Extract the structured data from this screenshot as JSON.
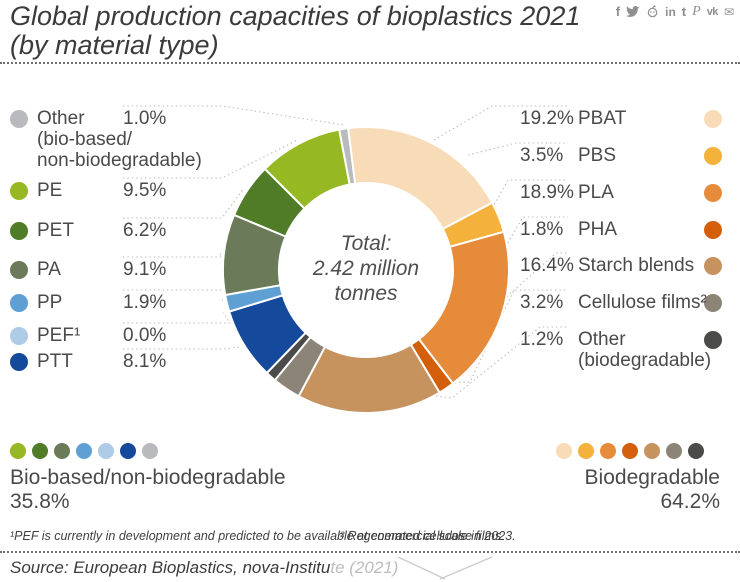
{
  "header": {
    "title_line1": "Global production capacities of bioplastics 2021",
    "title_line2": "(by material type)",
    "social_icons": [
      "facebook",
      "twitter",
      "reddit",
      "linkedin",
      "tumblr",
      "pinterest",
      "vk",
      "email"
    ]
  },
  "chart_data": {
    "type": "pie",
    "subtype": "donut",
    "title": "Global production capacities of bioplastics 2021 (by material type)",
    "center_lines": [
      "Total:",
      "2.42 million",
      "tonnes"
    ],
    "start_angle_deg": -7.2,
    "clockwise": true,
    "segments": [
      {
        "label": "PBAT",
        "value": 19.2,
        "group": "Biodegradable",
        "color": "#f8dcb8"
      },
      {
        "label": "PBS",
        "value": 3.5,
        "group": "Biodegradable",
        "color": "#f4b13c"
      },
      {
        "label": "PLA",
        "value": 18.9,
        "group": "Biodegradable",
        "color": "#e58b3a"
      },
      {
        "label": "PHA",
        "value": 1.8,
        "group": "Biodegradable",
        "color": "#d45f0a"
      },
      {
        "label": "Starch blends",
        "value": 16.4,
        "group": "Biodegradable",
        "color": "#c6935f"
      },
      {
        "label": "Cellulose films²",
        "value": 3.2,
        "group": "Biodegradable",
        "color": "#8d8478"
      },
      {
        "label": "Other (biodegradable)",
        "value": 1.2,
        "group": "Biodegradable",
        "color": "#4b4b49"
      },
      {
        "label": "PTT",
        "value": 8.1,
        "group": "Bio-based/non-biodegradable",
        "color": "#14499c"
      },
      {
        "label": "PEF¹",
        "value": 0.0,
        "group": "Bio-based/non-biodegradable",
        "color": "#aecbe8"
      },
      {
        "label": "PP",
        "value": 1.9,
        "group": "Bio-based/non-biodegradable",
        "color": "#5e9fd4"
      },
      {
        "label": "PA",
        "value": 9.1,
        "group": "Bio-based/non-biodegradable",
        "color": "#6b7a58"
      },
      {
        "label": "PET",
        "value": 6.2,
        "group": "Bio-based/non-biodegradable",
        "color": "#507c28"
      },
      {
        "label": "PE",
        "value": 9.5,
        "group": "Bio-based/non-biodegradable",
        "color": "#96b822"
      },
      {
        "label": "Other (bio-based/non-biodegradable)",
        "value": 1.0,
        "group": "Bio-based/non-biodegradable",
        "color": "#b9babe"
      }
    ],
    "groups": [
      {
        "label": "Bio-based/non-biodegradable",
        "share_pct": 35.8
      },
      {
        "label": "Biodegradable",
        "share_pct": 64.2
      }
    ]
  },
  "legend_left": {
    "items": [
      {
        "label": "Other",
        "sublabels": [
          "(bio-based/",
          "non-biodegradable)"
        ],
        "pct": "1.0%",
        "color": "#b9babe"
      },
      {
        "label": "PE",
        "pct": "9.5%",
        "color": "#96b822"
      },
      {
        "label": "PET",
        "pct": "6.2%",
        "color": "#507c28"
      },
      {
        "label": "PA",
        "pct": "9.1%",
        "color": "#6b7a58"
      },
      {
        "label": "PP",
        "pct": "1.9%",
        "color": "#5e9fd4"
      },
      {
        "label": "PEF¹",
        "pct": "0.0%",
        "color": "#aecbe8"
      },
      {
        "label": "PTT",
        "pct": "8.1%",
        "color": "#14499c"
      }
    ]
  },
  "legend_right": {
    "items": [
      {
        "pct": "19.2%",
        "label": "PBAT",
        "color": "#f8dcb8"
      },
      {
        "pct": "3.5%",
        "label": "PBS",
        "color": "#f4b13c"
      },
      {
        "pct": "18.9%",
        "label": "PLA",
        "color": "#e58b3a"
      },
      {
        "pct": "1.8%",
        "label": "PHA",
        "color": "#d45f0a"
      },
      {
        "pct": "16.4%",
        "label": "Starch blends",
        "color": "#c6935f"
      },
      {
        "pct": "3.2%",
        "label": "Cellulose films²",
        "color": "#8d8478"
      },
      {
        "pct": "1.2%",
        "label": "Other",
        "sublabels": [
          "(biodegradable)"
        ],
        "color": "#4b4b49"
      }
    ]
  },
  "summary_left": {
    "label": "Bio-based/non-biodegradable",
    "pct": "35.8%",
    "dot_colors": [
      "#96b822",
      "#507c28",
      "#6b7a58",
      "#5e9fd4",
      "#aecbe8",
      "#14499c",
      "#b9babe"
    ]
  },
  "summary_right": {
    "label": "Biodegradable",
    "pct": "64.2%",
    "dot_colors": [
      "#f8dcb8",
      "#f4b13c",
      "#e58b3a",
      "#d45f0a",
      "#c6935f",
      "#8d8478",
      "#4b4b49"
    ]
  },
  "footnotes": {
    "note1": "¹PEF is currently in development and predicted to be available at commercial scale in 2023.",
    "note2": "² Regenerated cellulose films"
  },
  "source": {
    "text_dark": "Source: European Bioplastics, nova-Institu",
    "text_light": "te (2021)"
  }
}
